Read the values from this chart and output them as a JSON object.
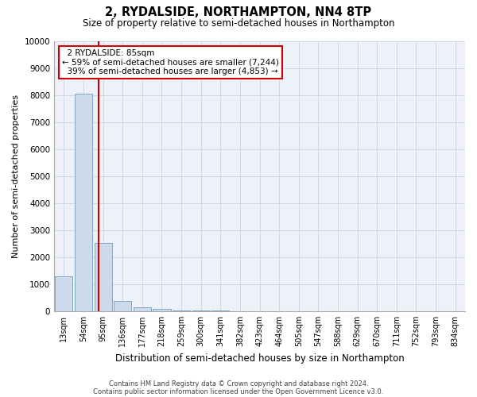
{
  "title": "2, RYDALSIDE, NORTHAMPTON, NN4 8TP",
  "subtitle": "Size of property relative to semi-detached houses in Northampton",
  "xlabel": "Distribution of semi-detached houses by size in Northampton",
  "ylabel": "Number of semi-detached properties",
  "footnote1": "Contains HM Land Registry data © Crown copyright and database right 2024.",
  "footnote2": "Contains public sector information licensed under the Open Government Licence v3.0.",
  "bar_labels": [
    "13sqm",
    "54sqm",
    "95sqm",
    "136sqm",
    "177sqm",
    "218sqm",
    "259sqm",
    "300sqm",
    "341sqm",
    "382sqm",
    "423sqm",
    "464sqm",
    "505sqm",
    "547sqm",
    "588sqm",
    "629sqm",
    "670sqm",
    "711sqm",
    "752sqm",
    "793sqm",
    "834sqm"
  ],
  "bar_values": [
    1300,
    8050,
    2530,
    370,
    130,
    80,
    30,
    20,
    10,
    5,
    3,
    2,
    1,
    1,
    0,
    0,
    0,
    0,
    0,
    0,
    0
  ],
  "bar_color": "#ccdaeb",
  "bar_edge_color": "#7aaac8",
  "ylim": [
    0,
    10000
  ],
  "yticks": [
    0,
    1000,
    2000,
    3000,
    4000,
    5000,
    6000,
    7000,
    8000,
    9000,
    10000
  ],
  "property_size_sqm": 85,
  "property_label": "2 RYDALSIDE: 85sqm",
  "pct_smaller": 59,
  "pct_smaller_n": "7,244",
  "pct_larger": 39,
  "pct_larger_n": "4,853",
  "vline_color": "#cc0000",
  "annotation_box_color": "#cc0000",
  "grid_color": "#ccd8e8",
  "background_color": "#eef2f8"
}
